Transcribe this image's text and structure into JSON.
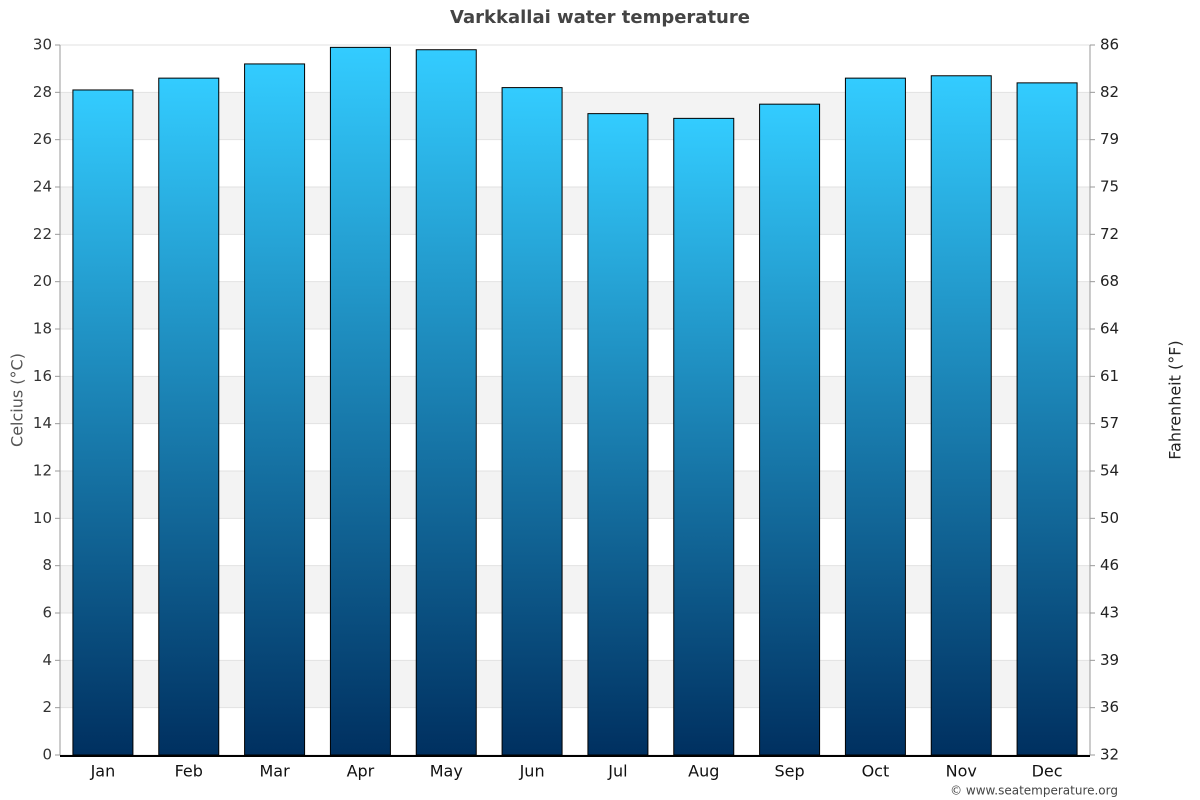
{
  "chart_data": {
    "type": "bar",
    "title": "Varkkallai water temperature",
    "y_label": "Celcius (°C)",
    "y2_label": "Fahrenheit (°F)",
    "categories": [
      "Jan",
      "Feb",
      "Mar",
      "Apr",
      "May",
      "Jun",
      "Jul",
      "Aug",
      "Sep",
      "Oct",
      "Nov",
      "Dec"
    ],
    "values": [
      28.1,
      28.6,
      29.2,
      29.9,
      29.8,
      28.2,
      27.1,
      26.9,
      27.5,
      28.6,
      28.7,
      28.4
    ],
    "color": [
      "#003060",
      "#33ccff"
    ],
    "ylim": [
      0,
      30
    ],
    "yticks": [
      0,
      2,
      4,
      6,
      8,
      10,
      12,
      14,
      16,
      18,
      20,
      22,
      24,
      26,
      28,
      30
    ],
    "y2lim": [
      32,
      86
    ],
    "y2ticks": [
      32,
      {
        "value": 35.6,
        "label": "36"
      },
      {
        "value": 39.2,
        "label": "39"
      },
      {
        "value": 42.8,
        "label": "43"
      },
      {
        "value": 46.4,
        "label": "46"
      },
      50,
      {
        "value": 53.6,
        "label": "54"
      },
      {
        "value": 57.2,
        "label": "57"
      },
      {
        "value": 60.8,
        "label": "61"
      },
      {
        "value": 64.4,
        "label": "64"
      },
      68,
      {
        "value": 71.6,
        "label": "72"
      },
      {
        "value": 75.2,
        "label": "75"
      },
      {
        "value": 78.8,
        "label": "79"
      },
      {
        "value": 82.4,
        "label": "82"
      },
      86
    ],
    "grid": true,
    "credit": "© www.seatemperature.org"
  }
}
